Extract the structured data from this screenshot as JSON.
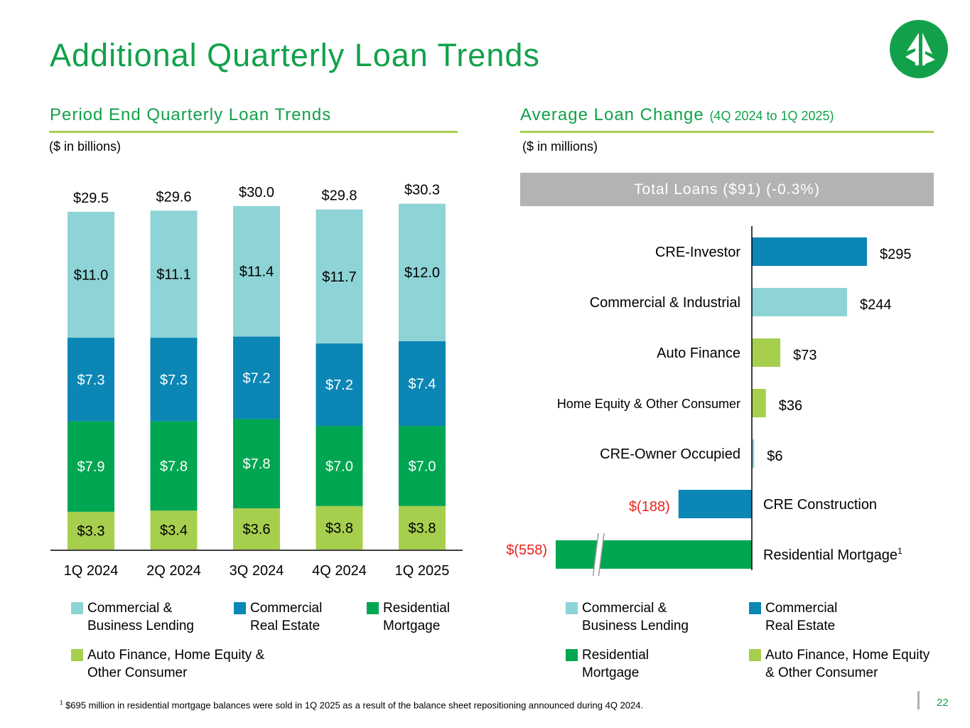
{
  "title": "Additional Quarterly Loan Trends",
  "page_number": "22",
  "logo_icon": "tree-logo-icon",
  "left_panel": {
    "title": "Period End Quarterly Loan Trends",
    "unit": "($ in billions)"
  },
  "right_panel": {
    "title": "Average Loan Change",
    "title_small": "(4Q 2024 to 1Q 2025)",
    "unit": "($ in millions)",
    "banner": "Total Loans ($91) (-0.3%)"
  },
  "colors": {
    "commercial_business": "#8ed3d6",
    "commercial_re": "#0b86b5",
    "residential": "#00a651",
    "auto_consumer": "#a7cf4e",
    "negative_label": "#e8231c",
    "brand": "#12a14a"
  },
  "chart_data": [
    {
      "type": "bar",
      "stacked": true,
      "categories": [
        "1Q 2024",
        "2Q 2024",
        "3Q 2024",
        "4Q 2024",
        "1Q 2025"
      ],
      "totals": [
        29.5,
        29.6,
        30.0,
        29.8,
        30.3
      ],
      "total_labels": [
        "$29.5",
        "$29.6",
        "$30.0",
        "$29.8",
        "$30.3"
      ],
      "series": [
        {
          "name": "Auto Finance, Home Equity & Other Consumer",
          "color": "#a7cf4e",
          "label_color": "#000000",
          "values": [
            3.3,
            3.4,
            3.6,
            3.8,
            3.8
          ],
          "labels": [
            "$3.3",
            "$3.4",
            "$3.6",
            "$3.8",
            "$3.8"
          ]
        },
        {
          "name": "Residential Mortgage",
          "color": "#00a651",
          "label_color": "#ffffff",
          "values": [
            7.9,
            7.8,
            7.8,
            7.0,
            7.0
          ],
          "labels": [
            "$7.9",
            "$7.8",
            "$7.8",
            "$7.0",
            "$7.0"
          ]
        },
        {
          "name": "Commercial Real Estate",
          "color": "#0b86b5",
          "label_color": "#ffffff",
          "values": [
            7.3,
            7.3,
            7.2,
            7.2,
            7.4
          ],
          "labels": [
            "$7.3",
            "$7.3",
            "$7.2",
            "$7.2",
            "$7.4"
          ]
        },
        {
          "name": "Commercial & Business Lending",
          "color": "#8ed3d6",
          "label_color": "#000000",
          "values": [
            11.0,
            11.1,
            11.4,
            11.7,
            12.0
          ],
          "labels": [
            "$11.0",
            "$11.1",
            "$11.4",
            "$11.7",
            "$12.0"
          ]
        }
      ],
      "ylim": [
        0,
        30.3
      ],
      "legend": [
        {
          "label": "Commercial & Business Lending",
          "color": "#8ed3d6"
        },
        {
          "label": "Commercial Real Estate",
          "color": "#0b86b5"
        },
        {
          "label": "Residential Mortgage",
          "color": "#00a651"
        },
        {
          "label": "Auto Finance, Home Equity & Other Consumer",
          "color": "#a7cf4e"
        }
      ]
    },
    {
      "type": "bar",
      "orientation": "horizontal",
      "categories": [
        "CRE-Investor",
        "Commercial & Industrial",
        "Auto Finance",
        "Home Equity & Other Consumer",
        "CRE-Owner Occupied",
        "CRE Construction",
        "Residential Mortgage"
      ],
      "category_superscripts": [
        "",
        "",
        "",
        "",
        "",
        "",
        "1"
      ],
      "values": [
        295,
        244,
        73,
        36,
        6,
        -188,
        -558
      ],
      "value_labels": [
        "$295",
        "$244",
        "$73",
        "$36",
        "$6",
        "$(188)",
        "$(558)"
      ],
      "colors": [
        "#0b86b5",
        "#8ed3d6",
        "#a7cf4e",
        "#a7cf4e",
        "#8ed3d6",
        "#0b86b5",
        "#00a651"
      ],
      "axis_break": true,
      "legend": [
        {
          "label": "Commercial & Business Lending",
          "color": "#8ed3d6"
        },
        {
          "label": "Commercial Real Estate",
          "color": "#0b86b5"
        },
        {
          "label": "Residential Mortgage",
          "color": "#00a651"
        },
        {
          "label": "Auto Finance, Home Equity & Other Consumer",
          "color": "#a7cf4e"
        }
      ]
    }
  ],
  "footnote": {
    "marker": "1",
    "text": "$695 million in residential mortgage balances were sold in 1Q 2025 as a result of the balance sheet repositioning announced during 4Q 2024."
  }
}
